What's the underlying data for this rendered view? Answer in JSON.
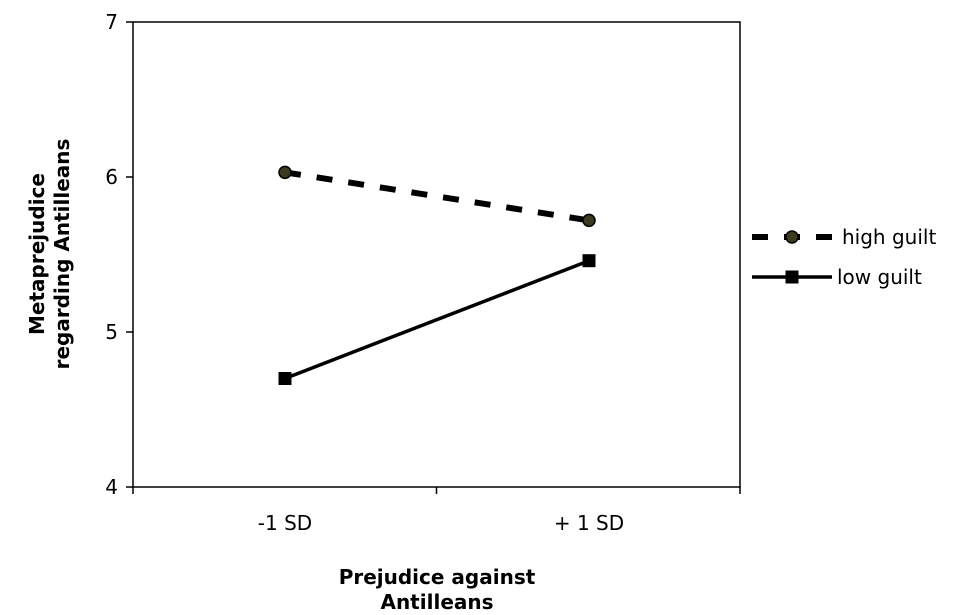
{
  "chart_data": {
    "type": "line",
    "categories": [
      "-1 SD",
      "+ 1 SD"
    ],
    "series": [
      {
        "name": "high guilt",
        "values": [
          6.03,
          5.72
        ],
        "style": "dashed",
        "marker": "circle",
        "marker_color": "#3a3a1e"
      },
      {
        "name": "low guilt",
        "values": [
          4.7,
          5.46
        ],
        "style": "solid",
        "marker": "square",
        "marker_color": "#000000"
      }
    ],
    "ylim": [
      4,
      7
    ],
    "yticks": [
      "4",
      "5",
      "6",
      "7"
    ],
    "xlabel": [
      "Prejudice against",
      "Antilleans"
    ],
    "ylabel": [
      "Metaprejudice",
      "regarding Antilleans"
    ],
    "legend_position": "right",
    "grid": false
  }
}
